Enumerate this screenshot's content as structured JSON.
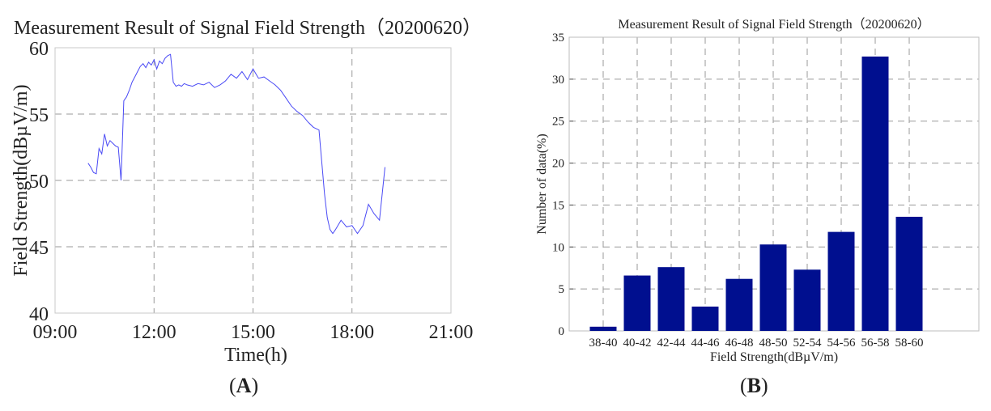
{
  "chart_data": [
    {
      "type": "line",
      "title": "Measurement Result of Signal Field Strength（20200620）",
      "xlabel": "Time(h)",
      "ylabel": "Field Strength(dBµV/m)",
      "xlim": [
        "09:00",
        "21:00"
      ],
      "ylim": [
        40,
        60
      ],
      "x_ticks": [
        "09:00",
        "12:00",
        "15:00",
        "18:00",
        "21:00"
      ],
      "y_ticks": [
        40,
        45,
        50,
        55,
        60
      ],
      "grid": true,
      "line_color": "#4a4af5",
      "series": [
        {
          "x": [
            "10:00",
            "10:05",
            "10:10",
            "10:15",
            "10:20",
            "10:25",
            "10:30",
            "10:35",
            "10:40",
            "10:45",
            "10:50",
            "10:55",
            "11:00",
            "11:05",
            "11:10",
            "11:15",
            "11:20",
            "11:25",
            "11:30",
            "11:35",
            "11:40",
            "11:45",
            "11:50",
            "11:55",
            "12:00",
            "12:05",
            "12:10",
            "12:15",
            "12:20",
            "12:25",
            "12:30",
            "12:35",
            "12:40",
            "12:45",
            "12:50",
            "12:55",
            "13:00",
            "13:10",
            "13:20",
            "13:30",
            "13:40",
            "13:50",
            "14:00",
            "14:10",
            "14:20",
            "14:30",
            "14:40",
            "14:50",
            "15:00",
            "15:10",
            "15:20",
            "15:30",
            "15:40",
            "15:50",
            "16:00",
            "16:10",
            "16:20",
            "16:30",
            "16:40",
            "16:50",
            "17:00",
            "17:10",
            "17:15",
            "17:20",
            "17:25",
            "17:30",
            "17:40",
            "17:50",
            "18:00",
            "18:10",
            "18:20",
            "18:30",
            "18:40",
            "18:50",
            "19:00"
          ],
          "values": [
            51.3,
            51.0,
            50.6,
            50.5,
            52.4,
            52.0,
            53.5,
            52.6,
            53.0,
            52.8,
            52.6,
            52.5,
            50.0,
            56.0,
            56.3,
            56.8,
            57.4,
            57.8,
            58.2,
            58.6,
            58.8,
            58.5,
            58.9,
            58.7,
            59.1,
            58.4,
            59.0,
            58.8,
            59.2,
            59.4,
            59.5,
            57.4,
            57.1,
            57.2,
            57.1,
            57.3,
            57.2,
            57.1,
            57.3,
            57.2,
            57.4,
            57.0,
            57.2,
            57.5,
            58.0,
            57.7,
            58.2,
            57.6,
            58.4,
            57.7,
            57.8,
            57.5,
            57.2,
            56.8,
            56.2,
            55.6,
            55.2,
            54.9,
            54.4,
            54.0,
            53.8,
            49.0,
            47.2,
            46.3,
            46.0,
            46.3,
            47.0,
            46.5,
            46.6,
            46.0,
            46.6,
            48.2,
            47.5,
            47.0,
            51.0
          ]
        }
      ]
    },
    {
      "type": "bar",
      "title": "Measurement Result of Signal Field Strength（20200620）",
      "xlabel": "Field Strength(dBµV/m)",
      "ylabel": "Number of data(%)",
      "categories": [
        "38-40",
        "40-42",
        "42-44",
        "44-46",
        "46-48",
        "48-50",
        "52-54",
        "54-56",
        "56-58",
        "58-60"
      ],
      "values": [
        0.5,
        6.6,
        7.6,
        2.9,
        6.2,
        10.3,
        7.3,
        11.8,
        32.7,
        13.6
      ],
      "ylim": [
        0,
        35
      ],
      "y_ticks": [
        0,
        5,
        10,
        15,
        20,
        25,
        30,
        35
      ],
      "grid": true,
      "bar_color": "#000f8f"
    }
  ],
  "panels": {
    "a": "A",
    "b": "B"
  }
}
